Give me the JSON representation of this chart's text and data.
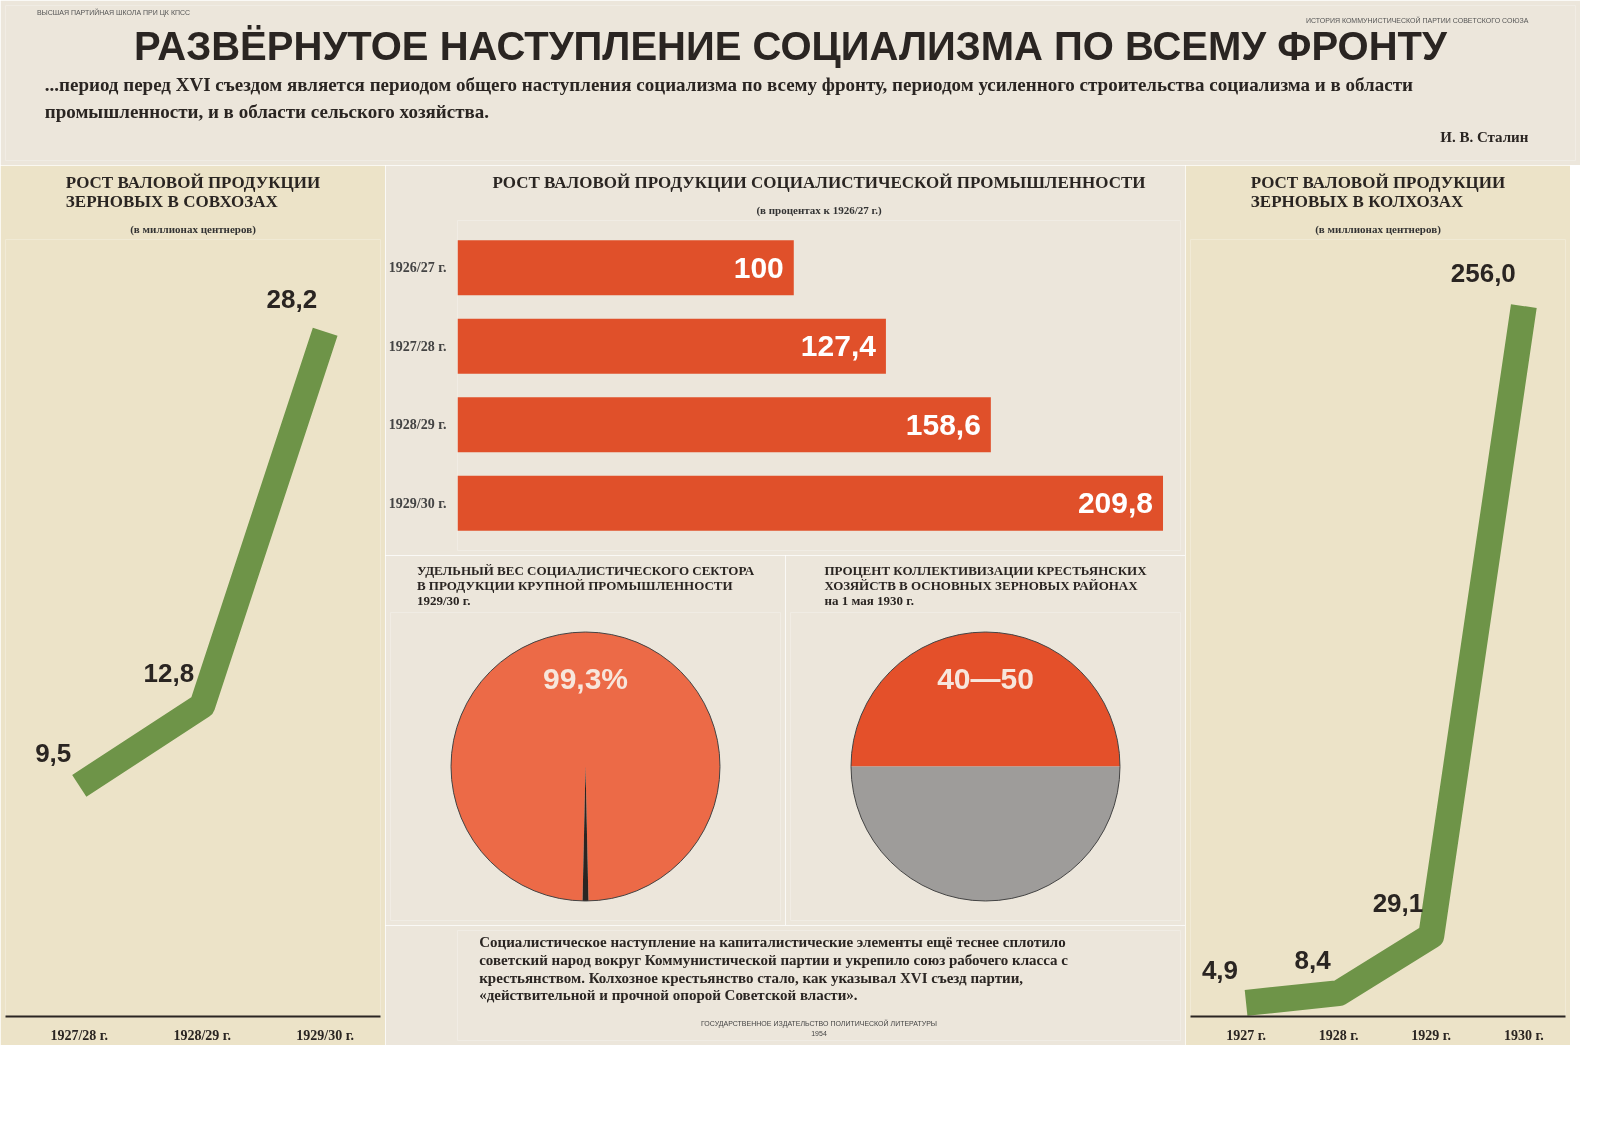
{
  "chart_data": [
    {
      "type": "other",
      "title": "РАЗВЁРНУТОЕ НАСТУПЛЕНИЕ СОЦИАЛИЗМА ПО ВСЕМУ ФРОНТУ",
      "annotations": [
        "ВЫСШАЯ ПАРТИЙНАЯ ШКОЛА ПРИ ЦК КПСС",
        "ИСТОРИЯ КОММУНИСТИЧЕСКОЙ ПАРТИИ СОВЕТСКОГО СОЮЗА",
        "...период перед XVI съездом является периодом общего наступления социализма по всему фронту, периодом усиленного строительства социализма и в области промышленности, и в области сельского хозяйства.",
        "И. В. Сталин"
      ]
    },
    {
      "type": "line",
      "title": "РОСТ ВАЛОВОЙ ПРОДУКЦИИ\nЗЕРНОВЫХ В СОВХОЗАХ",
      "subtitle": "(в миллионах центнеров)",
      "categories": [
        "1927/28 г.",
        "1928/29 г.",
        "1929/30 г."
      ],
      "color": "#6e9448",
      "values": [
        9.5,
        12.8,
        28.2
      ],
      "value_labels": [
        "9,5",
        "12,8",
        "28,2"
      ],
      "ylim": [
        0,
        32
      ],
      "tick_labels": "x"
    },
    {
      "type": "bar",
      "orientation": "horizontal",
      "title": "РОСТ ВАЛОВОЙ ПРОДУКЦИИ СОЦИАЛИСТИЧЕСКОЙ ПРОМЫШЛЕННОСТИ",
      "subtitle": "(в процентах к 1926/27 г.)",
      "categories": [
        "1926/27 г.",
        "1927/28 г.",
        "1928/29 г.",
        "1929/30 г."
      ],
      "color": "#e0502a",
      "values": [
        100,
        127.4,
        158.6,
        209.8
      ],
      "value_labels": [
        "100",
        "127,4",
        "158,6",
        "209,8"
      ],
      "xlim": [
        0,
        215
      ],
      "tick_labels": "y"
    },
    {
      "type": "pie",
      "title": "УДЕЛЬНЫЙ ВЕС СОЦИАЛИСТИЧЕСКОГО СЕКТОРА\nВ ПРОДУКЦИИ КРУПНОЙ ПРОМЫШЛЕННОСТИ\n1929/30 г.",
      "categories": [
        null,
        null
      ],
      "values": [
        99.3,
        0.7
      ],
      "colors": [
        "#ec6a47",
        "#2a2522"
      ],
      "value_labels": [
        "99,3%",
        null
      ]
    },
    {
      "type": "pie",
      "title": "ПРОЦЕНТ КОЛЛЕКТИВИЗАЦИИ КРЕСТЬЯНСКИХ\nХОЗЯЙСТВ В ОСНОВНЫХ ЗЕРНОВЫХ РАЙОНАХ\nна 1 мая 1930 г.",
      "categories": [
        null,
        null
      ],
      "values": [
        50,
        50
      ],
      "colors": [
        "#e4502a",
        "#9e9c9a"
      ],
      "value_labels": [
        "40—50",
        null
      ]
    },
    {
      "type": "line",
      "title": "РОСТ ВАЛОВОЙ ПРОДУКЦИИ\nЗЕРНОВЫХ В КОЛХОЗАХ",
      "subtitle": "(в миллионах центнеров)",
      "categories": [
        "1927 г.",
        "1928 г.",
        "1929 г.",
        "1930 г."
      ],
      "color": "#6e9448",
      "values": [
        4.9,
        8.4,
        29.1,
        256.0
      ],
      "value_labels": [
        "4,9",
        "8,4",
        "29,1",
        "256,0"
      ],
      "ylim": [
        0,
        280
      ],
      "tick_labels": "x"
    },
    {
      "type": "other",
      "annotations": [
        "Социалистическое наступление на капиталистические элементы ещё теснее сплотило советский народ вокруг Коммунистической партии и укрепило союз рабочего класса с крестьянством. Колхозное крестьянство стало, как указывал XVI съезд партии, «действительной и прочной опорой Советской власти».",
        "ГОСУДАРСТВЕННОЕ ИЗДАТЕЛЬСТВО ПОЛИТИЧЕСКОЙ ЛИТЕРАТУРЫ",
        "1954"
      ]
    }
  ]
}
